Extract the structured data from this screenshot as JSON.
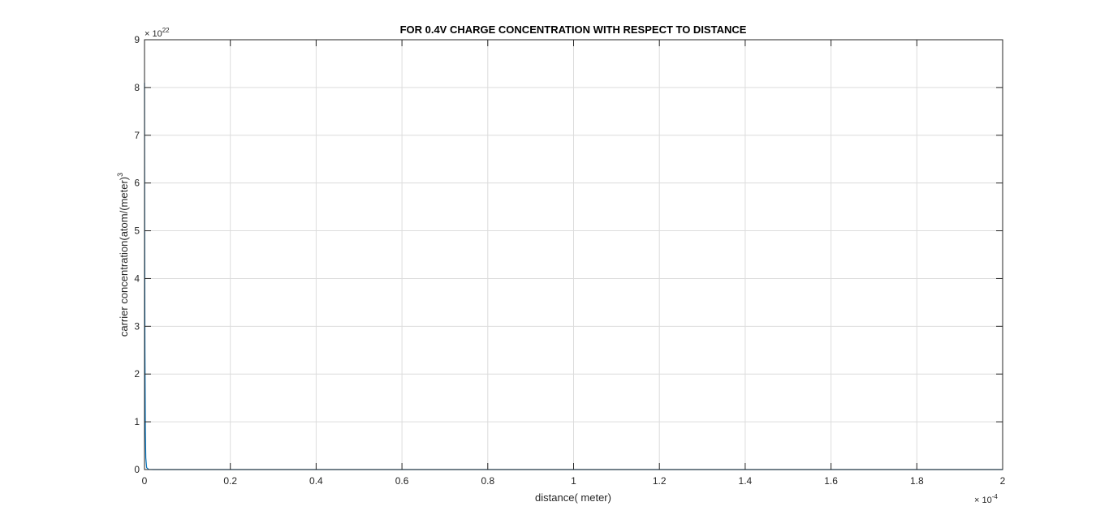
{
  "chart_data": {
    "type": "line",
    "title": "FOR 0.4V CHARGE CONCENTRATION WITH RESPECT TO DISTANCE",
    "xlabel": "distance( meter)",
    "ylabel": "carrier concentration(atom/(meter)",
    "ylabel_superscript": "3",
    "xlim": [
      0,
      0.0002
    ],
    "ylim": [
      0,
      9e+22
    ],
    "x_multiplier": {
      "base": "× 10",
      "exponent": "-4"
    },
    "y_multiplier": {
      "base": "× 10",
      "exponent": "22"
    },
    "x_ticks": [
      0,
      2e-05,
      4e-05,
      6e-05,
      8e-05,
      0.0001,
      0.00012,
      0.00014,
      0.00016,
      0.00018,
      0.0002
    ],
    "x_tick_labels": [
      "0",
      "0.2",
      "0.4",
      "0.6",
      "0.8",
      "1",
      "1.2",
      "1.4",
      "1.6",
      "1.8",
      "2"
    ],
    "y_ticks": [
      0,
      1e+22,
      2e+22,
      3e+22,
      4e+22,
      5e+22,
      6e+22,
      7e+22,
      8e+22,
      9e+22
    ],
    "y_tick_labels": [
      "0",
      "1",
      "2",
      "3",
      "4",
      "5",
      "6",
      "7",
      "8",
      "9"
    ],
    "grid": true,
    "series": [
      {
        "color": "#0072bd",
        "x": [
          0,
          5e-08,
          1e-07,
          2e-07,
          3e-07,
          5e-07,
          1e-06,
          2e-06,
          1e-05,
          5e-05,
          0.0001,
          0.00015,
          0.0002
        ],
        "y": [
          8.1e+22,
          4.5e+22,
          2.5e+22,
          8e+21,
          2.5e+21,
          4e+20,
          1e+19,
          1e+18,
          1e+17,
          1e+17,
          1e+17,
          1e+17,
          1e+17
        ]
      }
    ]
  }
}
